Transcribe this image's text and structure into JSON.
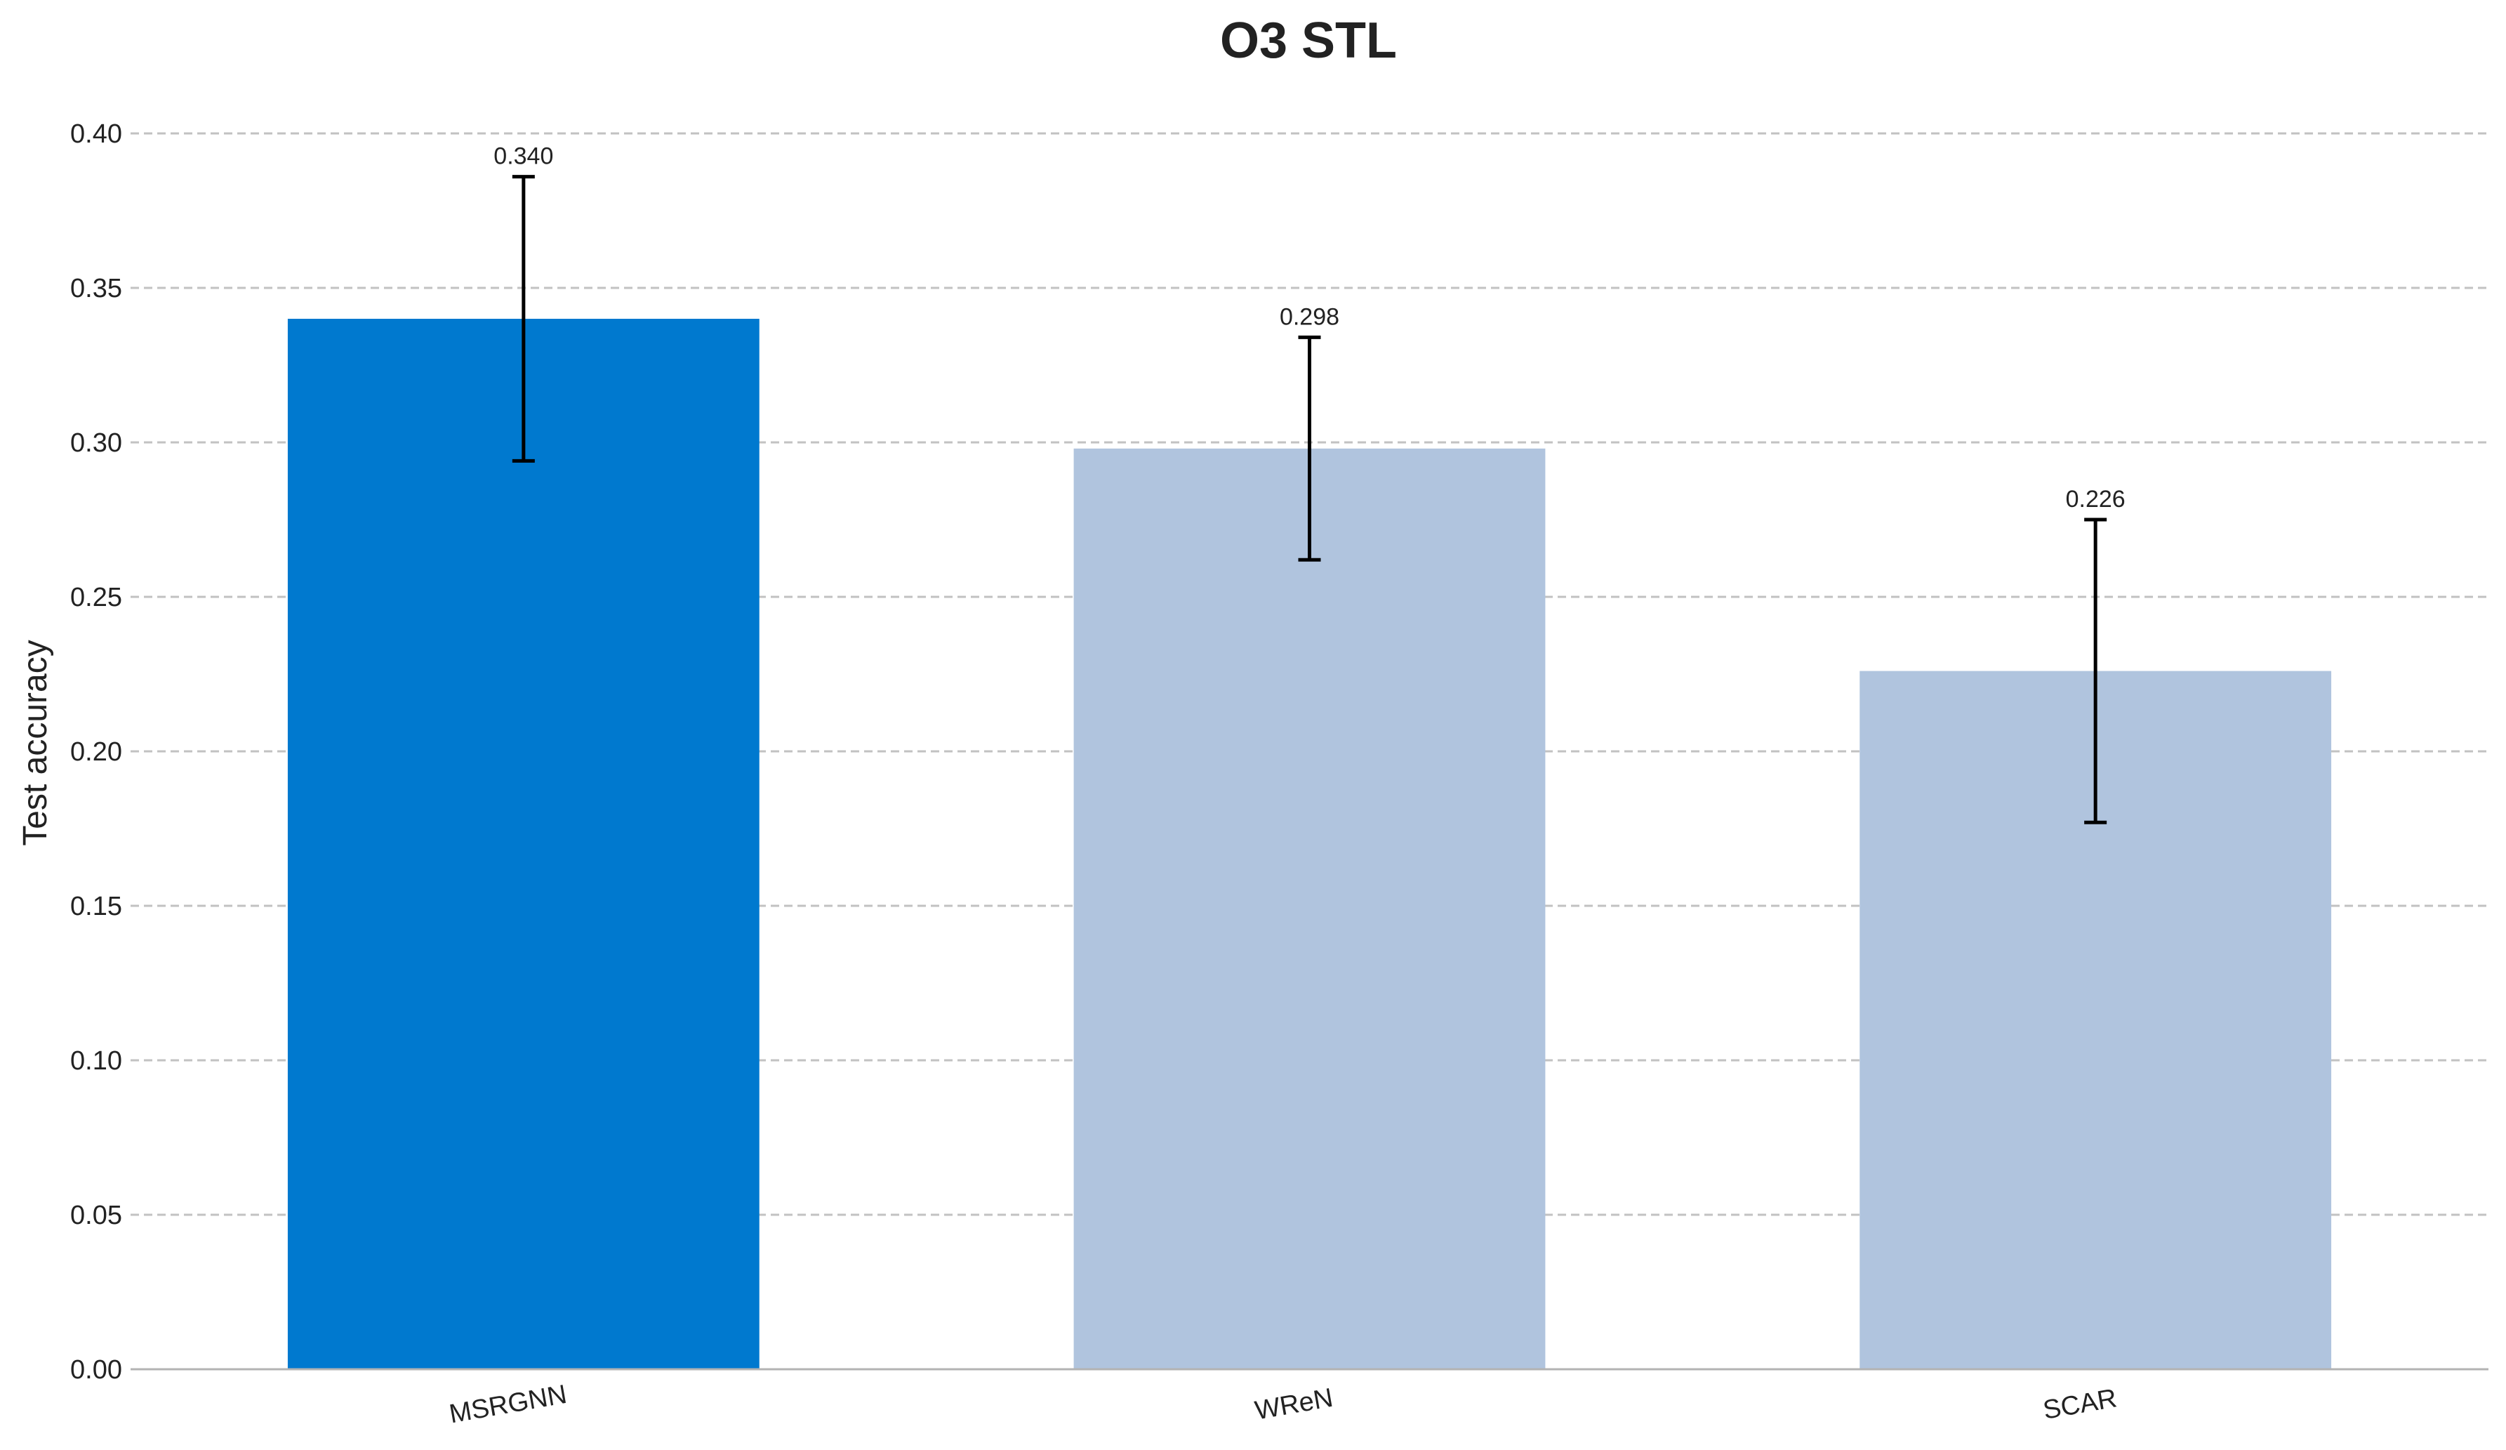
{
  "chart_data": {
    "type": "bar",
    "title": "O3 STL",
    "xlabel": "",
    "ylabel": "Test accuracy",
    "categories": [
      "MSRGNN",
      "WReN",
      "SCAR"
    ],
    "values": [
      0.34,
      0.298,
      0.226
    ],
    "value_labels": [
      "0.340",
      "0.298",
      "0.226"
    ],
    "error_low": [
      0.294,
      0.262,
      0.177
    ],
    "error_high": [
      0.386,
      0.334,
      0.275
    ],
    "bar_colors": [
      "#0079cf",
      "#b0c4de",
      "#b0c4de"
    ],
    "ylim": [
      0,
      0.4
    ],
    "yticks": [
      0.0,
      0.05,
      0.1,
      0.15,
      0.2,
      0.25,
      0.3,
      0.35,
      0.4
    ],
    "ytick_labels": [
      "0.00",
      "0.05",
      "0.10",
      "0.15",
      "0.20",
      "0.25",
      "0.30",
      "0.35",
      "0.40"
    ],
    "grid": "y-dashed",
    "xtick_rotation": "slight"
  }
}
